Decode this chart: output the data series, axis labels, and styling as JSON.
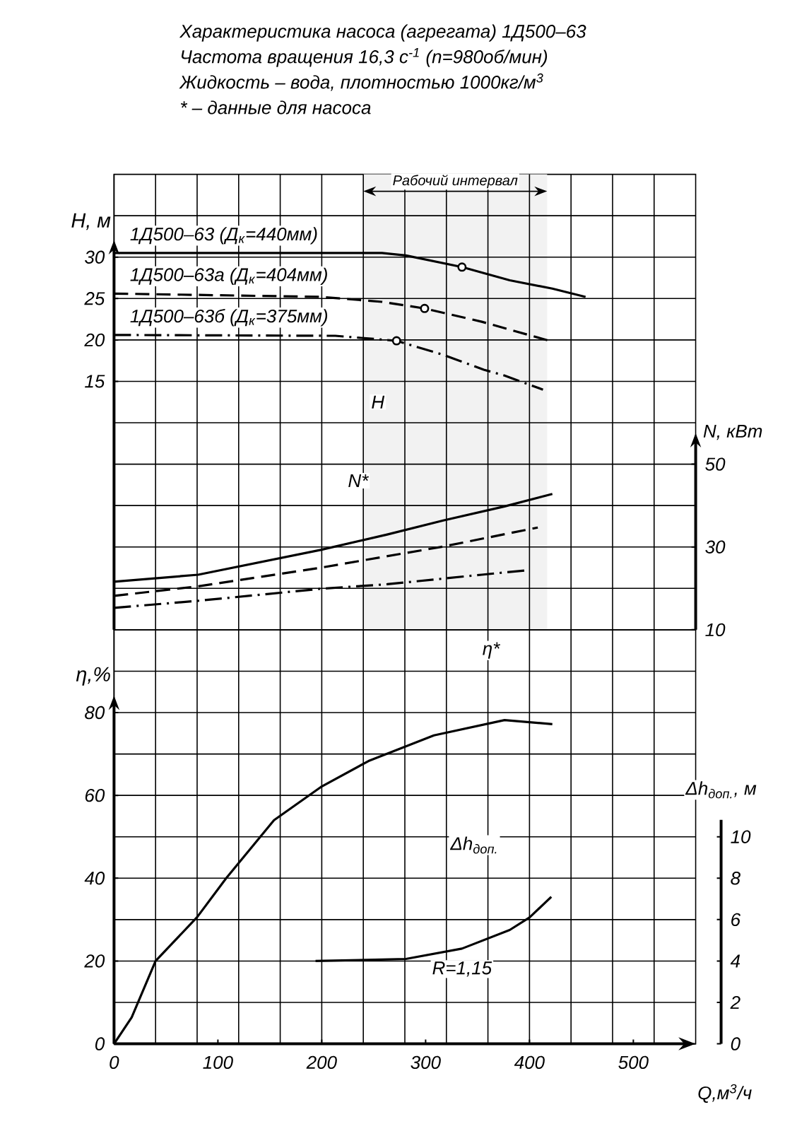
{
  "chart_data": [
    {
      "type": "line",
      "title": "Характеристика насоса (агрегата) 1Д500–63",
      "subtitle": "Частота вращения 16,3 с$^{-1}$ (n=980об/мин)",
      "ylabel": "H, м",
      "y2label": "N, кВт",
      "xlim": [
        0,
        560
      ],
      "xticks": [
        0,
        {
          "value": 40,
          "label": null
        },
        {
          "value": 80,
          "label": null
        },
        100,
        {
          "value": 120,
          "label": null
        },
        {
          "value": 160,
          "label": null
        },
        200,
        {
          "value": 240,
          "label": null
        },
        {
          "value": 280,
          "label": null
        },
        300,
        {
          "value": 320,
          "label": null
        },
        {
          "value": 360,
          "label": null
        },
        400,
        {
          "value": 440,
          "label": null
        },
        {
          "value": 480,
          "label": null
        },
        500,
        {
          "value": 520,
          "label": null
        }
      ],
      "ylim": [
        -15,
        40
      ],
      "yticks": [
        {
          "value": -10,
          "label": null
        },
        {
          "value": -5,
          "label": null
        },
        {
          "value": 0,
          "label": null
        },
        {
          "value": 5,
          "label": null
        },
        {
          "value": 10,
          "label": null
        },
        15,
        20,
        25,
        30,
        {
          "value": 35,
          "label": null
        }
      ],
      "y2lim": [
        10,
        120
      ],
      "y2ticks": [
        10,
        30,
        50
      ],
      "tick_labels": "y",
      "grid": true,
      "series": [
        {
          "name": "1Д500–63 (Д$_{к}$=440мм)",
          "color": "#000000",
          "line_style": "solid",
          "x": [
            0,
            258,
            281,
            335,
            381,
            422,
            454
          ],
          "values": [
            30.5,
            30.5,
            30.2,
            28.8,
            27.2,
            26.2,
            25.2
          ]
        },
        {
          "name": "1Д500–63а (Д$_{к}$=404мм)",
          "color": "#000000",
          "line_style": "dashed",
          "x": [
            0,
            199,
            258,
            299,
            354,
            422
          ],
          "values": [
            25.6,
            25.2,
            24.6,
            23.8,
            22.2,
            19.8
          ]
        },
        {
          "name": "1Д500–63б (Д$_{к}$=375мм)",
          "color": "#000000",
          "line_style": "dashdotted",
          "x": [
            0,
            213,
            272,
            317,
            356,
            376,
            413
          ],
          "values": [
            20.6,
            20.5,
            19.9,
            18.2,
            16.4,
            15.7,
            14.0
          ]
        },
        {
          "type": "scatter",
          "color": "#000000",
          "marker": "circle",
          "x": [
            335,
            299,
            272
          ],
          "values": [
            28.8,
            23.8,
            19.9
          ]
        },
        {
          "axis": "y2",
          "color": "#000000",
          "line_style": "solid",
          "x": [
            0,
            81,
            199,
            263,
            317,
            376,
            422
          ],
          "values": [
            21.6,
            23.3,
            29.3,
            33,
            36.4,
            39.8,
            42.8
          ]
        },
        {
          "axis": "y2",
          "color": "#000000",
          "line_style": "dashed",
          "x": [
            0,
            81,
            199,
            317,
            408
          ],
          "values": [
            18.2,
            20.5,
            25,
            30.1,
            34.7
          ]
        },
        {
          "axis": "y2",
          "color": "#000000",
          "line_style": "dashdotted",
          "x": [
            0,
            81,
            199,
            263,
            354,
            399
          ],
          "values": [
            15.3,
            17,
            19.9,
            21,
            23.3,
            24.4
          ]
        }
      ],
      "bands": [
        {
          "axis": "x",
          "from": 240,
          "to": 417,
          "label": "Рабочий интервал",
          "color": "#f2f2f2"
        }
      ],
      "annotations": [
        "Жидкость – вода, плотностью 1000кг/м$^{3}$",
        "* – данные для насоса",
        {
          "text": "H",
          "x": 254,
          "y": 12.5
        },
        {
          "text": "N*",
          "x": 235,
          "y": 3
        }
      ]
    },
    {
      "type": "line",
      "xlabel": "Q,м$^{3}$/ч",
      "ylabel": "η,%",
      "y2label": "Δh$_{доп.}$, м",
      "xlim": [
        0,
        560
      ],
      "xticks": [
        0,
        {
          "value": 40,
          "label": null
        },
        {
          "value": 80,
          "label": null
        },
        100,
        {
          "value": 120,
          "label": null
        },
        {
          "value": 160,
          "label": null
        },
        200,
        {
          "value": 240,
          "label": null
        },
        {
          "value": 280,
          "label": null
        },
        300,
        {
          "value": 320,
          "label": null
        },
        {
          "value": 360,
          "label": null
        },
        400,
        {
          "value": 440,
          "label": null
        },
        {
          "value": 480,
          "label": null
        },
        500,
        {
          "value": 520,
          "label": null
        }
      ],
      "ylim": [
        0,
        100
      ],
      "yticks": [
        0,
        {
          "value": 10,
          "label": null
        },
        20,
        {
          "value": 30,
          "label": null
        },
        40,
        {
          "value": 50,
          "label": null
        },
        60,
        {
          "value": 70,
          "label": null
        },
        80,
        {
          "value": 90,
          "label": null
        }
      ],
      "y2lim": [
        0,
        20
      ],
      "y2ticks": [
        0,
        2,
        4,
        6,
        8,
        10
      ],
      "grid": true,
      "series": [
        {
          "color": "#000000",
          "line_style": "solid",
          "x": [
            0,
            17,
            40,
            80,
            108,
            154,
            199,
            245,
            308,
            376,
            422
          ],
          "values": [
            0,
            6.4,
            20,
            30.6,
            40,
            54,
            62,
            68.3,
            74.5,
            78.2,
            77.2
          ]
        },
        {
          "axis": "y2",
          "color": "#000000",
          "line_style": "solid",
          "x": [
            194,
            281,
            335,
            381,
            400,
            421
          ],
          "values": [
            4,
            4.1,
            4.6,
            5.5,
            6.1,
            7.1
          ]
        }
      ],
      "annotations": [
        {
          "text": "η*",
          "x": 363,
          "y": 95
        },
        {
          "text": "Δh$_{доп.}$",
          "x": 347,
          "y": 48
        },
        "R=1,15"
      ]
    }
  ]
}
